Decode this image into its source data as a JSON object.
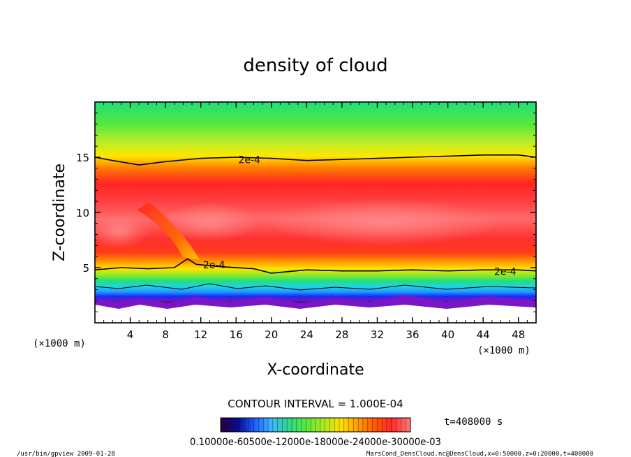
{
  "chart_data": {
    "type": "heatmap",
    "title": "density of cloud",
    "xlabel": "X-coordinate",
    "ylabel": "Z-coordinate",
    "x_unit_left": "(×1000 m)",
    "x_unit_right": "(×1000 m)",
    "xlim": [
      0,
      50
    ],
    "ylim": [
      0,
      20
    ],
    "xticks": [
      4,
      8,
      12,
      16,
      20,
      24,
      28,
      32,
      36,
      40,
      44,
      48
    ],
    "yticks": [
      5,
      10,
      15
    ],
    "contour_interval": "CONTOUR INTERVAL = 1.000E-04",
    "time_label": "t=408000 s",
    "contour_labels": [
      "2e-4",
      "2e-4",
      "2e-4"
    ],
    "colorbar_label_text": "0.10000e-60500e-12000e-18000e-24000e-30000e-03",
    "colorbar_colors": [
      "#2a0038",
      "#0b0b8e",
      "#1e5fff",
      "#3fb8ff",
      "#2ed88a",
      "#58e83a",
      "#a8e820",
      "#ffe200",
      "#ffa000",
      "#ff5a00",
      "#ff2a2a",
      "#ff7a7a"
    ],
    "upper_contour_2e-4": [
      [
        0,
        15.0
      ],
      [
        2,
        14.7
      ],
      [
        5,
        14.3
      ],
      [
        8,
        14.6
      ],
      [
        12,
        14.9
      ],
      [
        16,
        15.0
      ],
      [
        20,
        14.9
      ],
      [
        24,
        14.7
      ],
      [
        28,
        14.8
      ],
      [
        32,
        14.9
      ],
      [
        36,
        15.0
      ],
      [
        40,
        15.1
      ],
      [
        44,
        15.2
      ],
      [
        48,
        15.2
      ],
      [
        50,
        15.0
      ]
    ],
    "lower_contour_2e-4": [
      [
        0,
        4.8
      ],
      [
        3,
        5.0
      ],
      [
        6,
        4.9
      ],
      [
        9,
        5.0
      ],
      [
        10.5,
        5.8
      ],
      [
        11.5,
        5.3
      ],
      [
        14,
        5.1
      ],
      [
        18,
        4.9
      ],
      [
        20,
        4.5
      ],
      [
        24,
        4.8
      ],
      [
        28,
        4.7
      ],
      [
        32,
        4.7
      ],
      [
        36,
        4.8
      ],
      [
        40,
        4.7
      ],
      [
        44,
        4.8
      ],
      [
        48,
        4.8
      ],
      [
        50,
        4.7
      ]
    ]
  },
  "footer": {
    "left": "/usr/bin/gpview   2009-01-28",
    "right": "MarsCond_DensCloud.nc@DensCloud,x=0:50000,z=0:20000,t=408000"
  }
}
